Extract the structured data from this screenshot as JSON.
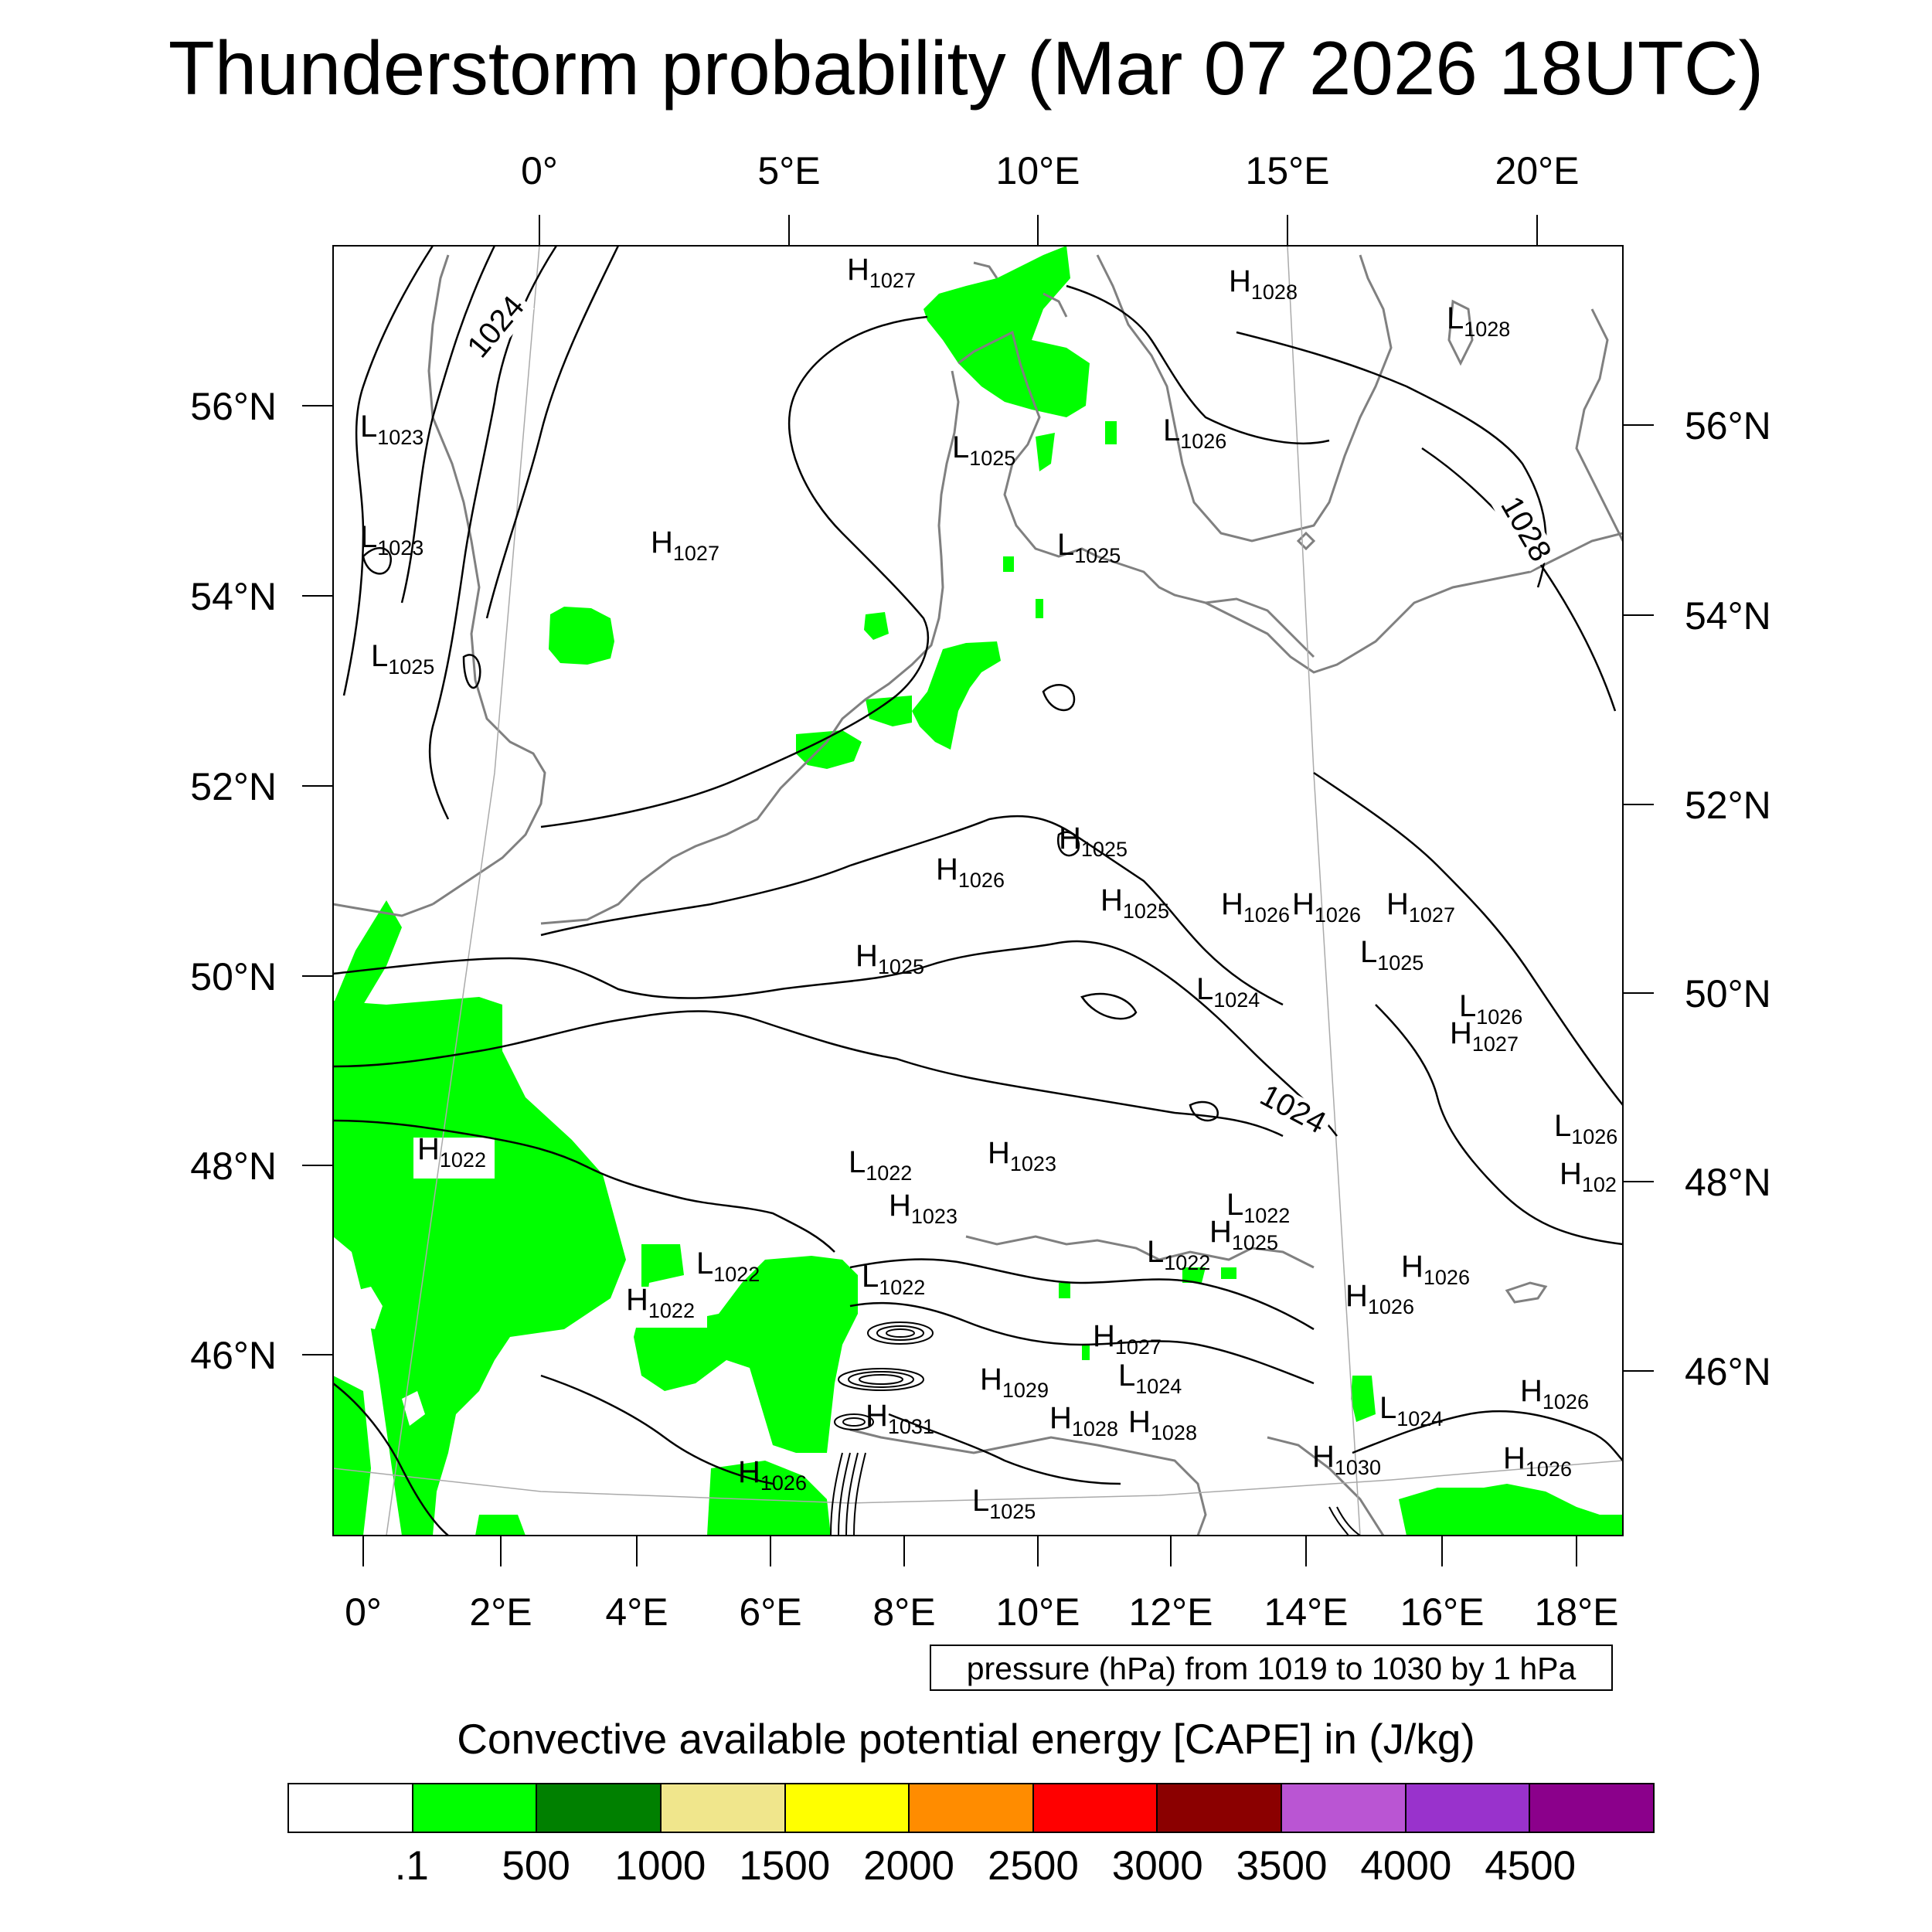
{
  "title": "Thunderstorm probability (Mar 07 2026 18UTC)",
  "axes": {
    "top_lon_labels": [
      "0°",
      "5°E",
      "10°E",
      "15°E",
      "20°E"
    ],
    "bottom_lon_labels": [
      "0°",
      "2°E",
      "4°E",
      "6°E",
      "8°E",
      "10°E",
      "12°E",
      "14°E",
      "16°E",
      "18°E"
    ],
    "left_lat_labels": [
      "56°N",
      "54°N",
      "52°N",
      "50°N",
      "48°N",
      "46°N"
    ],
    "right_lat_labels": [
      "56°N",
      "54°N",
      "52°N",
      "50°N",
      "48°N",
      "46°N"
    ]
  },
  "contour_info": "pressure (hPa) from 1019 to 1030 by 1 hPa",
  "contour_labels": [
    "1024",
    "1028",
    "1024"
  ],
  "pressure_centers": [
    {
      "t": "H",
      "v": "1027"
    },
    {
      "t": "H",
      "v": "1028"
    },
    {
      "t": "L",
      "v": "1028"
    },
    {
      "t": "L",
      "v": "1023"
    },
    {
      "t": "L",
      "v": "1025"
    },
    {
      "t": "L",
      "v": "1026"
    },
    {
      "t": "L",
      "v": "1023"
    },
    {
      "t": "H",
      "v": "1027"
    },
    {
      "t": "L",
      "v": "1025"
    },
    {
      "t": "L",
      "v": "1025"
    },
    {
      "t": "H",
      "v": "1025"
    },
    {
      "t": "H",
      "v": "1026"
    },
    {
      "t": "H",
      "v": "1025"
    },
    {
      "t": "H",
      "v": "1026"
    },
    {
      "t": "H",
      "v": "1026"
    },
    {
      "t": "H",
      "v": "1027"
    },
    {
      "t": "L",
      "v": "1025"
    },
    {
      "t": "H",
      "v": "1025"
    },
    {
      "t": "L",
      "v": "1024"
    },
    {
      "t": "L",
      "v": "1026"
    },
    {
      "t": "H",
      "v": "1027"
    },
    {
      "t": "L",
      "v": "1026"
    },
    {
      "t": "H",
      "v": "1022"
    },
    {
      "t": "L",
      "v": "1022"
    },
    {
      "t": "H",
      "v": "1023"
    },
    {
      "t": "H",
      "v": "102"
    },
    {
      "t": "H",
      "v": "1023"
    },
    {
      "t": "L",
      "v": "1022"
    },
    {
      "t": "H",
      "v": "1025"
    },
    {
      "t": "L",
      "v": "1022"
    },
    {
      "t": "L",
      "v": "1022"
    },
    {
      "t": "L",
      "v": "1022"
    },
    {
      "t": "H",
      "v": "1026"
    },
    {
      "t": "H",
      "v": "1022"
    },
    {
      "t": "H",
      "v": "1026"
    },
    {
      "t": "H",
      "v": "1027"
    },
    {
      "t": "H",
      "v": "1029"
    },
    {
      "t": "L",
      "v": "1024"
    },
    {
      "t": "L",
      "v": "1024"
    },
    {
      "t": "H",
      "v": "1026"
    },
    {
      "t": "H",
      "v": "1031"
    },
    {
      "t": "H",
      "v": "1028"
    },
    {
      "t": "H",
      "v": "1028"
    },
    {
      "t": "H",
      "v": "1030"
    },
    {
      "t": "H",
      "v": "1026"
    },
    {
      "t": "H",
      "v": "1026"
    },
    {
      "t": "L",
      "v": "1025"
    }
  ],
  "colorbar": {
    "title": "Convective available potential energy [CAPE] in (J/kg)",
    "colors": [
      "#ffffff",
      "#00ff00",
      "#008000",
      "#f0e68c",
      "#ffff00",
      "#ff8c00",
      "#ff0000",
      "#8b0000",
      "#ba55d3",
      "#9932cc",
      "#8b008b"
    ],
    "labels": [
      ".1",
      "500",
      "1000",
      "1500",
      "2000",
      "2500",
      "3000",
      "3500",
      "4000",
      "4500"
    ]
  },
  "styles": {
    "cape_fill": "#00ff00",
    "coast_color": "#808080",
    "contour_color": "#000000"
  }
}
